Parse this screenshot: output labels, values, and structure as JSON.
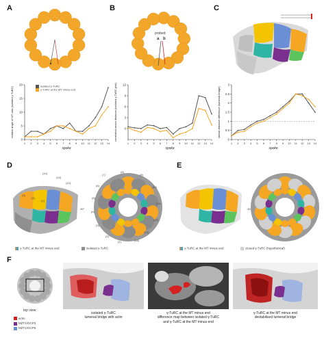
{
  "panels": {
    "A": {
      "label": "A"
    },
    "B": {
      "label": "B",
      "probe_label": "probed",
      "probe_a": "a",
      "probe_b": "b"
    },
    "C": {
      "label": "C"
    },
    "D": {
      "label": "D"
    },
    "E": {
      "label": "E"
    },
    "F": {
      "label": "F"
    }
  },
  "chart_legend": {
    "isolated": "isolated γ-TuRC",
    "mt_end": "γ-TuRC at the MT minus end"
  },
  "colors": {
    "isolated": "#555555",
    "mt_end": "#f5a623",
    "spoke": "#f2a72a",
    "actin": "#d42020",
    "mzt1_a": "#7a2f8f",
    "mzt1_b": "#6b8fd4"
  },
  "chart_data": [
    {
      "type": "line",
      "panel": "A",
      "ylabel": "relative angle of MT axis (isolated γ-TuRC)",
      "xlabel": "spoke",
      "x": [
        1,
        2,
        3,
        4,
        5,
        6,
        7,
        8,
        9,
        10,
        11,
        12,
        13,
        14
      ],
      "ylim": [
        0,
        20
      ],
      "yticks": [
        0,
        5,
        10,
        15,
        20
      ],
      "series": [
        {
          "name": "isolated γ-TuRC",
          "values": [
            1,
            3,
            3,
            2,
            4,
            5,
            4,
            6,
            3,
            3,
            5,
            8,
            12,
            19
          ]
        },
        {
          "name": "γ-TuRC at the MT minus end",
          "values": [
            1,
            1,
            1,
            2,
            3,
            5,
            5,
            4,
            3,
            2,
            4,
            5,
            9,
            12
          ]
        }
      ]
    },
    {
      "type": "line",
      "panel": "B",
      "ylabel": "correlated vector distance (isolated γ-TuRC plot)",
      "xlabel": "spoke",
      "x": [
        1,
        2,
        3,
        4,
        5,
        6,
        7,
        8,
        9,
        10,
        11,
        12,
        13,
        14
      ],
      "ylim": [
        -3,
        12
      ],
      "yticks": [
        0,
        3,
        6,
        9,
        12
      ],
      "series": [
        {
          "name": "isolated γ-TuRC",
          "values": [
            0.5,
            0.2,
            0,
            1,
            0.8,
            0,
            0.3,
            -1.5,
            0,
            0.5,
            1.5,
            9,
            8.5,
            4
          ]
        },
        {
          "name": "γ-TuRC at the MT minus end",
          "values": [
            0.2,
            -0.5,
            -1,
            0.3,
            0,
            -0.8,
            -0.5,
            -2.5,
            -1.5,
            -1,
            0,
            5.5,
            5,
            1
          ]
        }
      ]
    },
    {
      "type": "line",
      "panel": "C",
      "ylabel": "lateral distance difference (lumenal bridge)",
      "xlabel": "spoke",
      "x": [
        1,
        2,
        3,
        4,
        5,
        6,
        7,
        8,
        9,
        10,
        11,
        12,
        13,
        14
      ],
      "ylim": [
        0,
        3
      ],
      "yticks": [
        0,
        0.5,
        1,
        1.5,
        2,
        2.5,
        3
      ],
      "series": [
        {
          "name": "isolated γ-TuRC",
          "values": [
            0.2,
            0.5,
            0.55,
            0.8,
            1.0,
            1.1,
            1.3,
            1.5,
            1.8,
            2.1,
            2.5,
            2.5,
            2.0,
            1.5
          ]
        },
        {
          "name": "γ-TuRC at the MT minus end",
          "values": [
            0.2,
            0.4,
            0.45,
            0.7,
            0.9,
            1.0,
            1.2,
            1.4,
            1.7,
            2.0,
            2.5,
            2.4,
            2.2,
            1.8
          ]
        }
      ]
    }
  ],
  "panelD": {
    "legend_mt": "γ-TuRC at the MT minus end",
    "legend_iso": "isolated γ-TuRC",
    "labels_left": [
      "(14)",
      "(13)",
      "(12)",
      "(3)",
      "(2)",
      "(1)"
    ],
    "labels_right": [
      "(7)",
      "(8)",
      "(9)",
      "(10)",
      "(11)",
      "(12)",
      "(13)",
      "(14)",
      "(1)",
      "(2)",
      "(3)",
      "(4)",
      "(5)",
      "(6)"
    ],
    "axis_mark": "-90°"
  },
  "panelE": {
    "legend_mt": "γ-TuRC at the MT minus end",
    "legend_closed": "closed γ-TuRC (hypothetical)",
    "axis_mark": "-90°"
  },
  "panelF": {
    "top_view": "top view",
    "legend": [
      {
        "name": "actin",
        "color": "#d42020"
      },
      {
        "name": "MZT1/GCP3",
        "color": "#7a2f8f"
      },
      {
        "name": "MZT1/GCP6",
        "color": "#6b8fd4"
      }
    ],
    "cap1": "isolated γ-TuRC\nlumenal bridge with actin",
    "cap2_a": "γ-TuRC at the MT minus end",
    "cap2_b": "difference map between isolated γ-TuRC",
    "cap2_c": "and γ-TuRC at the MT minus end",
    "cap3": "γ-TuRC at the MT minus end\ndestabilised lumenal bridge"
  }
}
